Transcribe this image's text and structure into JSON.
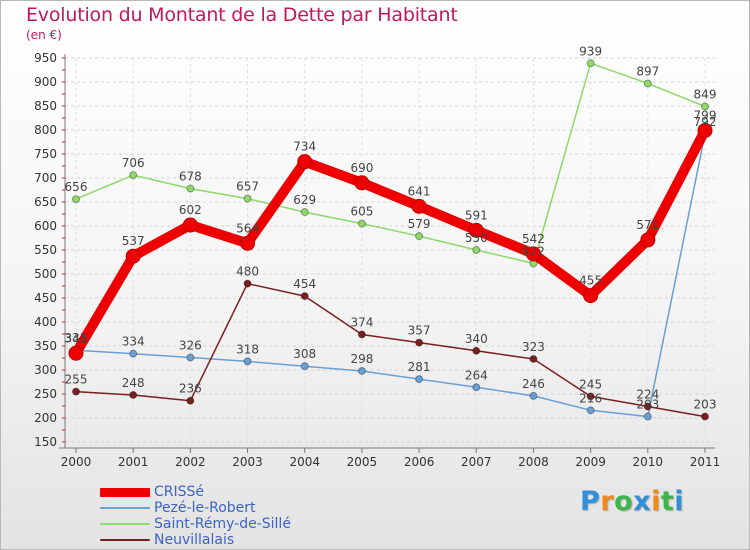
{
  "chart_data": {
    "type": "line",
    "title": "Evolution du Montant de la Dette par Habitant",
    "subtitle": "(en €)",
    "x": [
      "2000",
      "2001",
      "2002",
      "2003",
      "2004",
      "2005",
      "2006",
      "2007",
      "2008",
      "2009",
      "2010",
      "2011"
    ],
    "yticks": [
      "150",
      "200",
      "250",
      "300",
      "350",
      "400",
      "450",
      "500",
      "550",
      "600",
      "650",
      "700",
      "750",
      "800",
      "850",
      "900",
      "950"
    ],
    "ylim": [
      150,
      950
    ],
    "grid": true,
    "legend_position": "bottom-left",
    "series": [
      {
        "name": "CRISSé",
        "color": "#ee0000",
        "values": [
          335,
          537,
          602,
          564,
          734,
          690,
          641,
          591,
          542,
          455,
          571,
          799
        ],
        "labels": [
          "335",
          "537",
          "602",
          "564",
          "734",
          "690",
          "641",
          "591",
          "542",
          "455",
          "571",
          "799"
        ]
      },
      {
        "name": "Pezé-le-Robert",
        "color": "#6a9fd4",
        "values": [
          341,
          334,
          326,
          318,
          308,
          298,
          281,
          264,
          246,
          216,
          203,
          792
        ],
        "labels": [
          "341",
          "334",
          "326",
          "318",
          "308",
          "298",
          "281",
          "264",
          "246",
          "216",
          "203",
          "792"
        ]
      },
      {
        "name": "Saint-Rémy-de-Sillé",
        "color": "#8fd86a",
        "values": [
          656,
          706,
          678,
          657,
          629,
          605,
          579,
          550,
          522,
          939,
          897,
          849
        ],
        "labels": [
          "656",
          "706",
          "678",
          "657",
          "629",
          "605",
          "579",
          "550",
          "522",
          "939",
          "897",
          "849"
        ]
      },
      {
        "name": "Neuvillalais",
        "color": "#7a1e1e",
        "values": [
          255,
          248,
          236,
          480,
          454,
          374,
          357,
          340,
          323,
          245,
          224,
          203
        ],
        "labels": [
          "255",
          "248",
          "236",
          "480",
          "454",
          "374",
          "357",
          "340",
          "323",
          "245",
          "224",
          "203"
        ]
      }
    ]
  },
  "logo": {
    "letters": [
      {
        "char": "P",
        "color": "#2f8fd8"
      },
      {
        "char": "r",
        "color": "#f08a1c"
      },
      {
        "char": "o",
        "color": "#3db54a"
      },
      {
        "char": "x",
        "color": "#2f8fd8"
      },
      {
        "char": "i",
        "color": "#f08a1c"
      },
      {
        "char": "t",
        "color": "#3db54a"
      },
      {
        "char": "i",
        "color": "#2f8fd8"
      }
    ]
  }
}
